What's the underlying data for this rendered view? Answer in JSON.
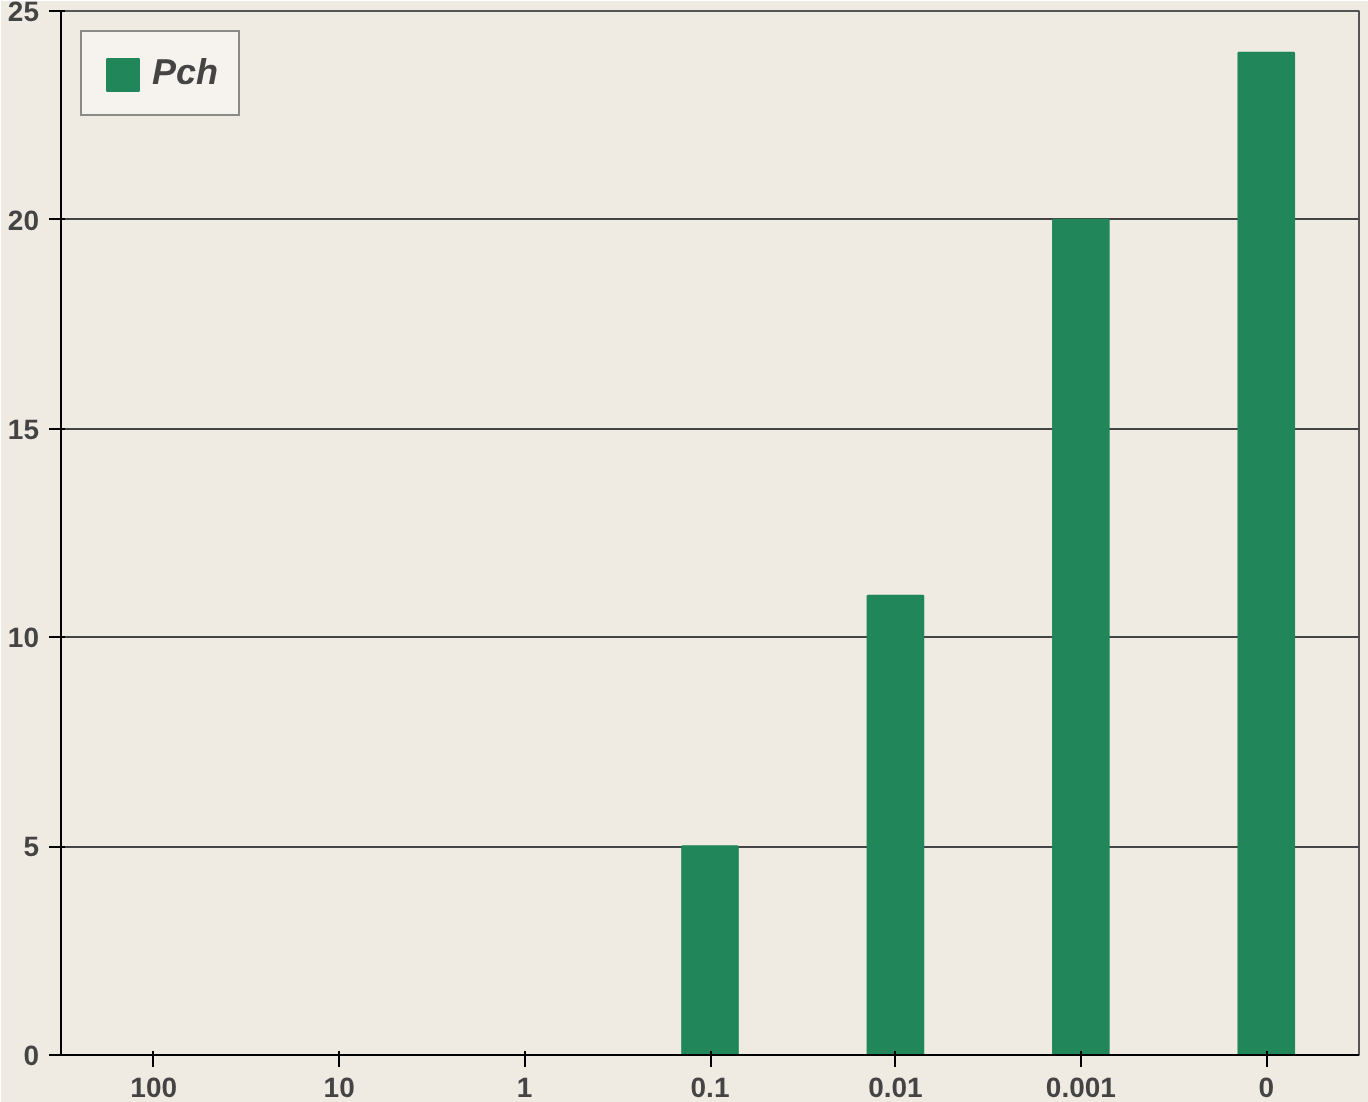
{
  "chart_data": {
    "type": "bar",
    "categories": [
      "100",
      "10",
      "1",
      "0.1",
      "0.01",
      "0.001",
      "0"
    ],
    "series": [
      {
        "name": "Pch",
        "color": "#21875a",
        "values": [
          0,
          0,
          0,
          5,
          11,
          20,
          24
        ]
      }
    ],
    "ylim": [
      0,
      25
    ],
    "yticks": [
      0,
      5,
      10,
      15,
      20,
      25
    ],
    "grid": "y",
    "legend": "top left"
  }
}
